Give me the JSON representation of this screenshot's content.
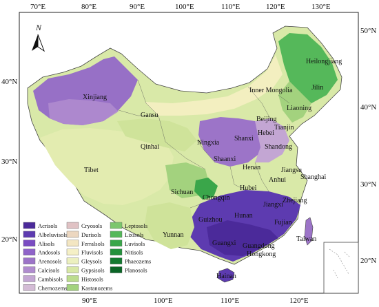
{
  "top_ticks": [
    "70°E",
    "80°E",
    "90°E",
    "100°E",
    "110°E",
    "120°E",
    "130°E"
  ],
  "bottom_ticks": [
    "90°E",
    "100°E",
    "110°E",
    "120°E"
  ],
  "left_ticks": [
    "40°N",
    "30°N",
    "20°N"
  ],
  "right_ticks": [
    "50°N",
    "40°N",
    "30°N",
    "20°N"
  ],
  "north_label": "N",
  "provinces": [
    "Xinjiang",
    "Gansu",
    "Qinhai",
    "Tibet",
    "Inner Mongolia",
    "Heilongjiang",
    "Jilin",
    "Liaoning",
    "Beijing",
    "Tianjin",
    "Hebei",
    "Shanxi",
    "Ningxia",
    "Shaanxi",
    "Shandong",
    "Henan",
    "Jiangsu",
    "Shanghai",
    "Anhui",
    "Zhejiang",
    "Hubei",
    "Sichuan",
    "Chongqin",
    "Guizhou",
    "Hunan",
    "Jiangxi",
    "Fujian",
    "Taiwan",
    "Yunnan",
    "Guangxi",
    "Guangdong",
    "Hongkong",
    "Hainan"
  ],
  "legend": [
    {
      "name": "Acrisols",
      "color": "#4b2a9a"
    },
    {
      "name": "Albeluvisols",
      "color": "#5d3bb0"
    },
    {
      "name": "Alisols",
      "color": "#7a4cc2"
    },
    {
      "name": "Andosols",
      "color": "#8f63c9"
    },
    {
      "name": "Arenosols",
      "color": "#9c74c8"
    },
    {
      "name": "Calcisols",
      "color": "#b08ccf"
    },
    {
      "name": "Cambisols",
      "color": "#c3a6d3"
    },
    {
      "name": "Chernozems",
      "color": "#d4bcd6"
    },
    {
      "name": "Cryosols",
      "color": "#e0c2c4"
    },
    {
      "name": "Durisols",
      "color": "#ecd7c0"
    },
    {
      "name": "Ferralsols",
      "color": "#f3e6c2"
    },
    {
      "name": "Fluvisols",
      "color": "#f5f0c6"
    },
    {
      "name": "Gleysols",
      "color": "#ecf0bf"
    },
    {
      "name": "Gypsisols",
      "color": "#d8e8a6"
    },
    {
      "name": "Histosols",
      "color": "#bcdc8e"
    },
    {
      "name": "Kastanozems",
      "color": "#a3d27e"
    },
    {
      "name": "Leptosols",
      "color": "#7cc66d"
    },
    {
      "name": "Lixisols",
      "color": "#55b85a"
    },
    {
      "name": "Luvisols",
      "color": "#3aa64a"
    },
    {
      "name": "Nitisols",
      "color": "#23913c"
    },
    {
      "name": "Phaeozems",
      "color": "#137a30"
    },
    {
      "name": "Planosols",
      "color": "#0a6526"
    }
  ]
}
